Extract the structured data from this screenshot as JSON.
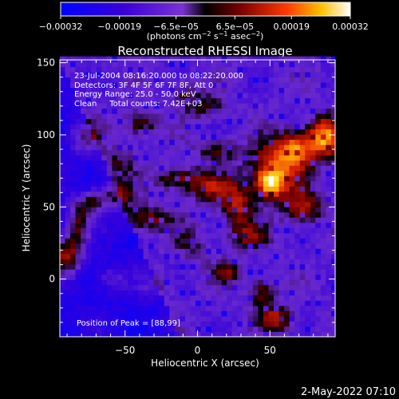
{
  "chart_data": {
    "type": "heatmap",
    "title": "Reconstructed RHESSI Image",
    "xlabel": "Heliocentric X (arcsec)",
    "ylabel": "Heliocentric Y (arcsec)",
    "xlim": [
      -95,
      95
    ],
    "ylim": [
      -40,
      152
    ],
    "xticks": [
      {
        "value": -50,
        "label": "−50"
      },
      {
        "value": 0,
        "label": "0"
      },
      {
        "value": 50,
        "label": "50"
      }
    ],
    "yticks": [
      {
        "value": 0,
        "label": "0"
      },
      {
        "value": 50,
        "label": "50"
      },
      {
        "value": 100,
        "label": "100"
      },
      {
        "value": 150,
        "label": "150"
      }
    ],
    "annotations": [
      "23-Jul-2004 08:16:20.000 to 08:22:20.000",
      "Detectors: 3F 4F 5F 6F 7F 8F, Att 0",
      "Energy Range: 25.0 - 50.0 keV",
      "Clean     Total counts: 7.42E+03"
    ],
    "peak_label": "Position of Peak = [88,99]",
    "colorbar": {
      "range": [
        -0.00032,
        0.00032
      ],
      "ticks": [
        {
          "value": -0.00032,
          "label": "−0.00032"
        },
        {
          "value": -0.00019,
          "label": "−0.00019"
        },
        {
          "value": -6.5e-05,
          "label": "−6.5e−05"
        },
        {
          "value": 6.5e-05,
          "label": "6.5e−05"
        },
        {
          "value": 0.00019,
          "label": "0.00019"
        },
        {
          "value": 0.00032,
          "label": "0.00032"
        }
      ],
      "unit_label_main": "(photons cm",
      "unit_exp1": "−2",
      "unit_mid": " s",
      "unit_exp2": "−1",
      "unit_end": " asec",
      "unit_exp3": "−2",
      "unit_close": ")"
    },
    "sources": [
      {
        "x": 88,
        "y": 99,
        "amp": 0.00032,
        "sx": 8,
        "sy": 10
      },
      {
        "x": 55,
        "y": 78,
        "amp": 0.00026,
        "sx": 14,
        "sy": 12
      },
      {
        "x": 68,
        "y": 92,
        "amp": 0.00025,
        "sx": 10,
        "sy": 8
      },
      {
        "x": 50,
        "y": 66,
        "amp": 0.0003,
        "sx": 7,
        "sy": 7
      },
      {
        "x": 72,
        "y": 50,
        "amp": 0.00022,
        "sx": 10,
        "sy": 8
      },
      {
        "x": -90,
        "y": 16,
        "amp": 0.00031,
        "sx": 7,
        "sy": 9
      },
      {
        "x": -83,
        "y": 36,
        "amp": 0.00024,
        "sx": 6,
        "sy": 10
      },
      {
        "x": -75,
        "y": 52,
        "amp": 0.0002,
        "sx": 8,
        "sy": 6
      },
      {
        "x": -58,
        "y": 58,
        "amp": 0.0002,
        "sx": 10,
        "sy": 6
      },
      {
        "x": -35,
        "y": 42,
        "amp": 0.00018,
        "sx": 12,
        "sy": 6
      },
      {
        "x": -15,
        "y": 70,
        "amp": 0.00017,
        "sx": 10,
        "sy": 6
      },
      {
        "x": 10,
        "y": 64,
        "amp": 0.00018,
        "sx": 12,
        "sy": 8
      },
      {
        "x": 28,
        "y": 50,
        "amp": 0.0002,
        "sx": 8,
        "sy": 10
      },
      {
        "x": 35,
        "y": 30,
        "amp": 0.00016,
        "sx": 10,
        "sy": 6
      },
      {
        "x": -40,
        "y": 108,
        "amp": 0.00017,
        "sx": 8,
        "sy": 6
      },
      {
        "x": -78,
        "y": 98,
        "amp": 0.00016,
        "sx": 8,
        "sy": 8
      },
      {
        "x": 5,
        "y": 120,
        "amp": 0.00014,
        "sx": 10,
        "sy": 6
      },
      {
        "x": -10,
        "y": 130,
        "amp": 0.00012,
        "sx": 6,
        "sy": 6
      },
      {
        "x": 45,
        "y": -10,
        "amp": 0.00019,
        "sx": 6,
        "sy": 8
      },
      {
        "x": 55,
        "y": -28,
        "amp": 0.00022,
        "sx": 8,
        "sy": 6
      },
      {
        "x": 20,
        "y": 5,
        "amp": 0.00015,
        "sx": 8,
        "sy": 6
      },
      {
        "x": -60,
        "y": 0,
        "amp": 0.00012,
        "sx": 8,
        "sy": 6
      },
      {
        "x": -30,
        "y": -5,
        "amp": 0.0001,
        "sx": 8,
        "sy": 6
      },
      {
        "x": 12,
        "y": 90,
        "amp": 0.00013,
        "sx": 10,
        "sy": 6
      },
      {
        "x": -55,
        "y": 80,
        "amp": 0.00012,
        "sx": 8,
        "sy": 8
      },
      {
        "x": -5,
        "y": 25,
        "amp": 0.0001,
        "sx": 8,
        "sy": 8
      }
    ]
  },
  "timestamp": "2-May-2022 07:10"
}
